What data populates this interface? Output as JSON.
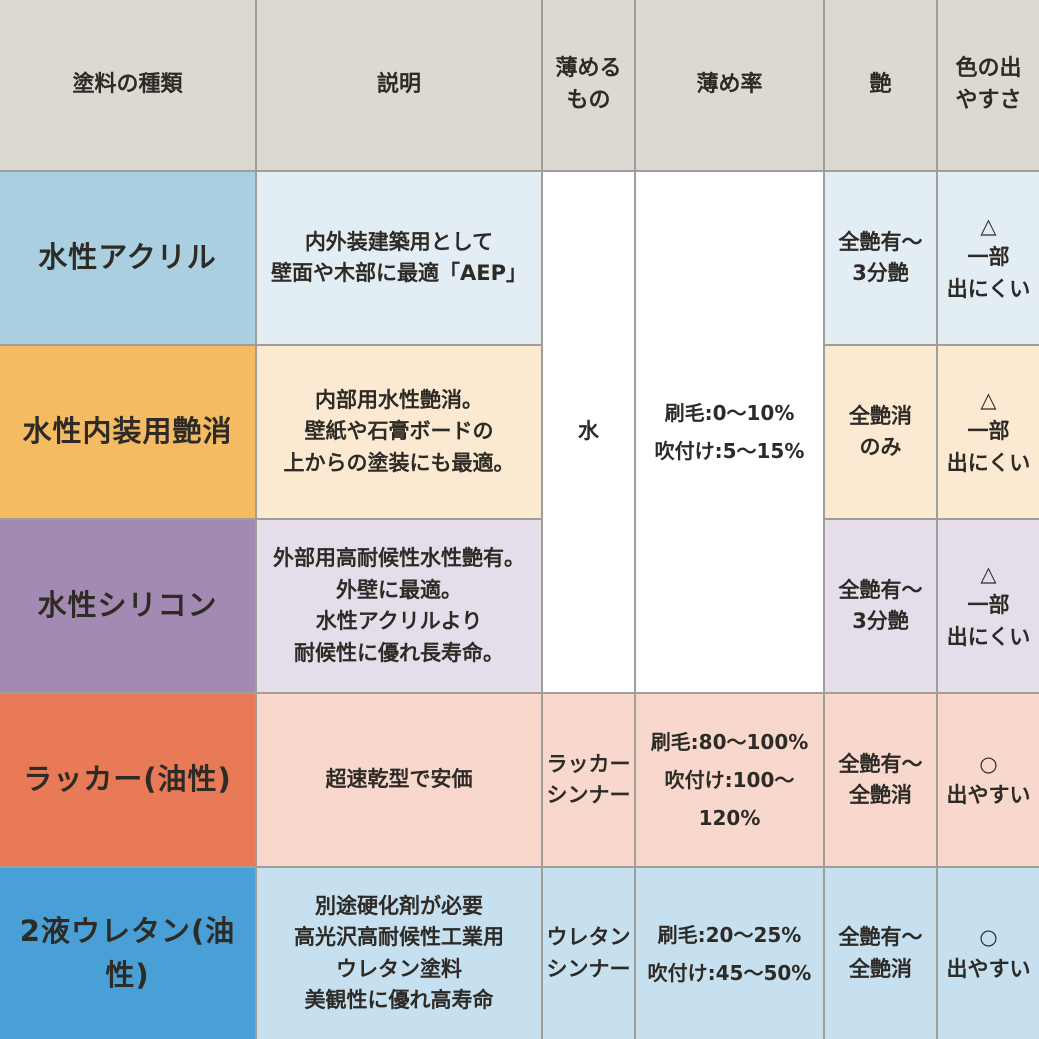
{
  "chart_data": {
    "type": "table",
    "columns": [
      "塗料の種類",
      "説明",
      "薄めるもの",
      "薄め率",
      "艶",
      "色の出やすさ"
    ],
    "header_display": {
      "paint_type": "塗料の種類",
      "description": "説明",
      "thinner": "薄める\nもの",
      "thinning_ratio": "薄め率",
      "gloss": "艶",
      "color_ease": "色の出\nやすさ"
    },
    "merged_cells": {
      "thinner_rows_1_to_3": "水",
      "ratio_rows_1_to_3": "刷毛:0〜10%\n吹付け:5〜15%"
    },
    "rows": [
      {
        "name": "水性アクリル",
        "desc": "内外装建築用として\n壁面や木部に最適「AEP」",
        "thinner": "水",
        "ratio": "刷毛:0〜10%\n吹付け:5〜15%",
        "gloss": "全艶有〜\n3分艶",
        "color_ease": "△\n一部\n出にくい"
      },
      {
        "name": "水性内装用艶消",
        "desc": "内部用水性艶消。\n壁紙や石膏ボードの\n上からの塗装にも最適。",
        "thinner": "水",
        "ratio": "刷毛:0〜10%\n吹付け:5〜15%",
        "gloss": "全艶消\nのみ",
        "color_ease": "△\n一部\n出にくい"
      },
      {
        "name": "水性シリコン",
        "desc": "外部用高耐候性水性艶有。\n外壁に最適。\n水性アクリルより\n耐候性に優れ長寿命。",
        "thinner": "水",
        "ratio": "刷毛:0〜10%\n吹付け:5〜15%",
        "gloss": "全艶有〜\n3分艶",
        "color_ease": "△\n一部\n出にくい"
      },
      {
        "name": "ラッカー(油性)",
        "desc": "超速乾型で安価",
        "thinner": "ラッカー\nシンナー",
        "ratio": "刷毛:80〜100%\n吹付け:100〜120%",
        "gloss": "全艶有〜\n全艶消",
        "color_ease": "○\n出やすい"
      },
      {
        "name": "2液ウレタン(油性)",
        "desc": "別途硬化剤が必要\n高光沢高耐候性工業用\nウレタン塗料\n美観性に優れ高寿命",
        "thinner": "ウレタン\nシンナー",
        "ratio": "刷毛:20〜25%\n吹付け:45〜50%",
        "gloss": "全艶有〜\n全艶消",
        "color_ease": "○\n出やすい"
      }
    ],
    "palette": {
      "header_bg": "#dcd9d2",
      "gridline": "#9f9e97",
      "text": "#2e2b27",
      "row1_label": "#a9cfe0",
      "row1_light": "#e3edf4",
      "row2_label": "#f5bb62",
      "row2_light": "#fbe9d1",
      "row3_label": "#a28ab3",
      "row3_light": "#e5deea",
      "row4_label": "#e87a58",
      "row4_light": "#f8d8cc",
      "row5_label": "#48a0d6",
      "row5_light": "#c6e0f0",
      "merged_bg": "#ffffff"
    }
  }
}
